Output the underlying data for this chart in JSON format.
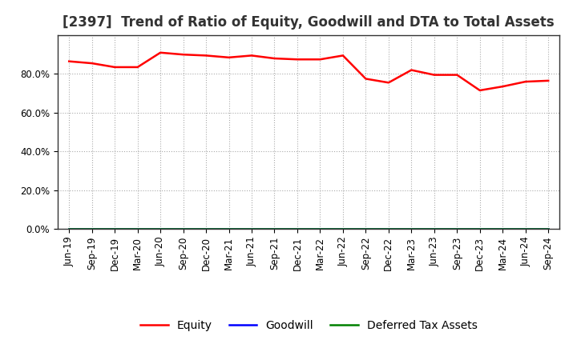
{
  "title": "[2397]  Trend of Ratio of Equity, Goodwill and DTA to Total Assets",
  "x_labels": [
    "Jun-19",
    "Sep-19",
    "Dec-19",
    "Mar-20",
    "Jun-20",
    "Sep-20",
    "Dec-20",
    "Mar-21",
    "Jun-21",
    "Sep-21",
    "Dec-21",
    "Mar-22",
    "Jun-22",
    "Sep-22",
    "Dec-22",
    "Mar-23",
    "Jun-23",
    "Sep-23",
    "Dec-23",
    "Mar-24",
    "Jun-24",
    "Sep-24"
  ],
  "equity": [
    86.5,
    85.5,
    83.5,
    83.5,
    91.0,
    90.0,
    89.5,
    88.5,
    89.5,
    88.0,
    87.5,
    87.5,
    89.5,
    77.5,
    75.5,
    82.0,
    79.5,
    79.5,
    71.5,
    73.5,
    76.0,
    76.5
  ],
  "goodwill": [
    0,
    0,
    0,
    0,
    0,
    0,
    0,
    0,
    0,
    0,
    0,
    0,
    0,
    0,
    0,
    0,
    0,
    0,
    0,
    0,
    0,
    0
  ],
  "deferred_tax_assets": [
    0,
    0,
    0,
    0,
    0,
    0,
    0,
    0,
    0,
    0,
    0,
    0,
    0,
    0,
    0,
    0,
    0,
    0,
    0,
    0,
    0,
    0
  ],
  "equity_color": "#ff0000",
  "goodwill_color": "#0000ff",
  "dta_color": "#008000",
  "ylim": [
    0,
    100
  ],
  "yticks": [
    0,
    20,
    40,
    60,
    80
  ],
  "ytick_labels": [
    "0.0%",
    "20.0%",
    "40.0%",
    "60.0%",
    "80.0%"
  ],
  "background_color": "#ffffff",
  "plot_bg_color": "#ffffff",
  "grid_color": "#aaaaaa",
  "legend_labels": [
    "Equity",
    "Goodwill",
    "Deferred Tax Assets"
  ],
  "title_fontsize": 12,
  "tick_fontsize": 8.5,
  "legend_fontsize": 10
}
